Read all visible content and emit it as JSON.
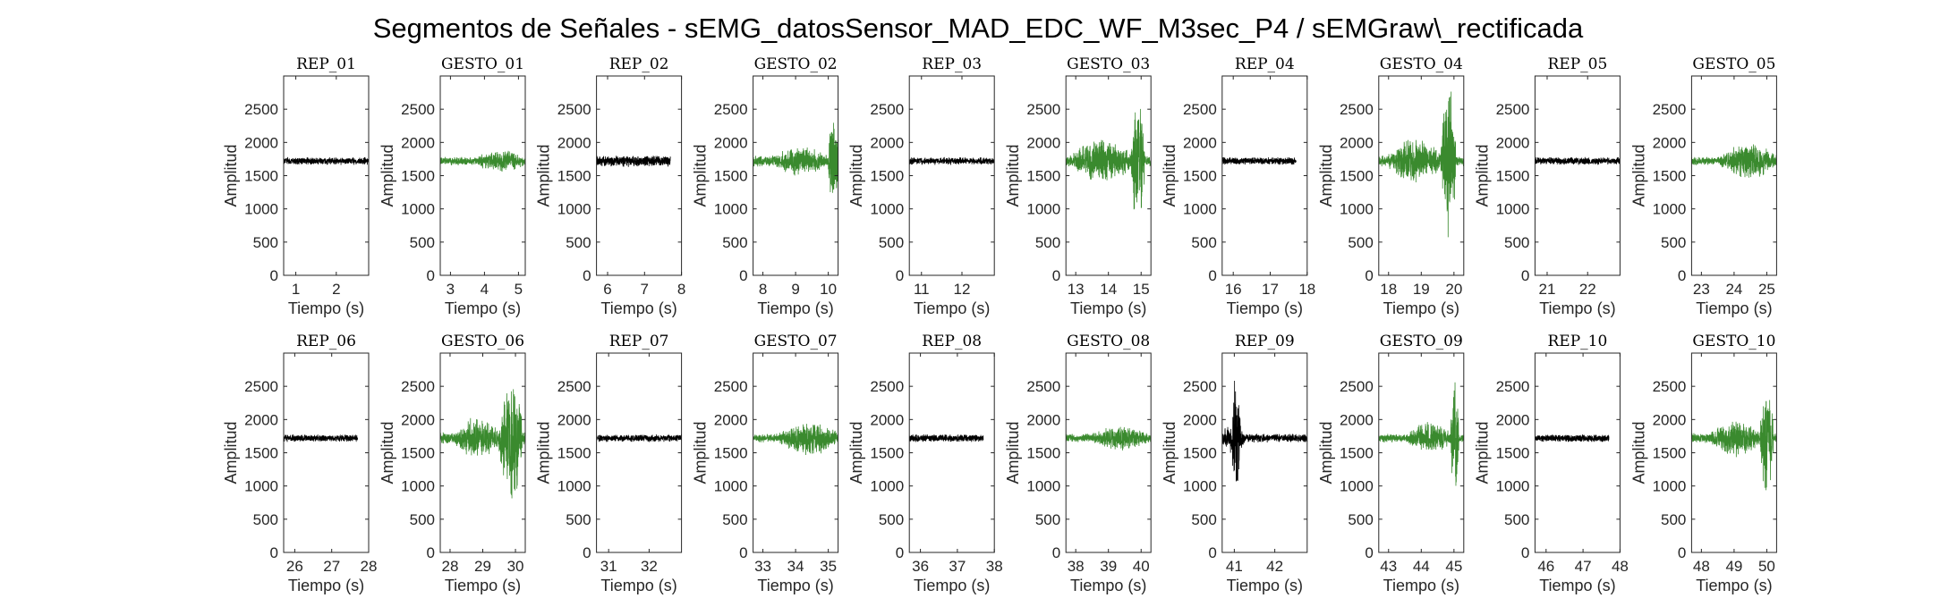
{
  "figure": {
    "title": "Segmentos de Señales - sEMG_datosSensor_MAD_EDC_WF_M3sec_P4 / sEMGraw\\_rectificada",
    "colors": {
      "rep": "#000000",
      "gesto": "#3A8A2E",
      "axis": "#262626"
    }
  },
  "chart_data": [
    {
      "type": "line",
      "title": "REP_01",
      "kind": "rep",
      "xlabel": "Tiempo (s)",
      "ylabel": "Amplitud",
      "xlim": [
        0.7,
        2.8
      ],
      "ylim": [
        0,
        3000
      ],
      "xticks": [
        1,
        2
      ],
      "yticks": [
        0,
        500,
        1000,
        1500,
        2000,
        2500
      ],
      "series": [
        {
          "x_start": 0.7,
          "x_end": 2.8,
          "baseline": 1720,
          "noise": 60,
          "bursts": []
        }
      ]
    },
    {
      "type": "line",
      "title": "GESTO_01",
      "kind": "gesto",
      "xlabel": "Tiempo (s)",
      "ylabel": "Amplitud",
      "xlim": [
        2.7,
        5.2
      ],
      "ylim": [
        0,
        3000
      ],
      "xticks": [
        3,
        4,
        5
      ],
      "yticks": [
        0,
        500,
        1000,
        1500,
        2000,
        2500
      ],
      "series": [
        {
          "x_start": 2.7,
          "x_end": 5.2,
          "baseline": 1720,
          "noise": 70,
          "bursts": [
            [
              3.7,
              5.2,
              180
            ]
          ]
        }
      ]
    },
    {
      "type": "line",
      "title": "REP_02",
      "kind": "rep",
      "xlabel": "Tiempo (s)",
      "ylabel": "Amplitud",
      "xlim": [
        5.7,
        8.0
      ],
      "ylim": [
        0,
        3000
      ],
      "xticks": [
        6,
        7,
        8
      ],
      "yticks": [
        0,
        500,
        1000,
        1500,
        2000,
        2500
      ],
      "series": [
        {
          "x_start": 5.7,
          "x_end": 7.7,
          "baseline": 1720,
          "noise": 90,
          "bursts": []
        }
      ]
    },
    {
      "type": "line",
      "title": "GESTO_02",
      "kind": "gesto",
      "xlabel": "Tiempo (s)",
      "ylabel": "Amplitud",
      "xlim": [
        7.7,
        10.3
      ],
      "ylim": [
        0,
        3000
      ],
      "xticks": [
        8,
        9,
        10
      ],
      "yticks": [
        0,
        500,
        1000,
        1500,
        2000,
        2500
      ],
      "series": [
        {
          "x_start": 7.7,
          "x_end": 10.3,
          "baseline": 1720,
          "noise": 90,
          "bursts": [
            [
              8.3,
              10.0,
              230
            ],
            [
              10.0,
              10.3,
              900
            ]
          ]
        }
      ]
    },
    {
      "type": "line",
      "title": "REP_03",
      "kind": "rep",
      "xlabel": "Tiempo (s)",
      "ylabel": "Amplitud",
      "xlim": [
        10.7,
        12.8
      ],
      "ylim": [
        0,
        3000
      ],
      "xticks": [
        11,
        12
      ],
      "yticks": [
        0,
        500,
        1000,
        1500,
        2000,
        2500
      ],
      "series": [
        {
          "x_start": 10.7,
          "x_end": 12.8,
          "baseline": 1720,
          "noise": 60,
          "bursts": []
        }
      ]
    },
    {
      "type": "line",
      "title": "GESTO_03",
      "kind": "gesto",
      "xlabel": "Tiempo (s)",
      "ylabel": "Amplitud",
      "xlim": [
        12.7,
        15.3
      ],
      "ylim": [
        0,
        3000
      ],
      "xticks": [
        13,
        14,
        15
      ],
      "yticks": [
        0,
        500,
        1000,
        1500,
        2000,
        2500
      ],
      "series": [
        {
          "x_start": 12.7,
          "x_end": 15.3,
          "baseline": 1720,
          "noise": 90,
          "bursts": [
            [
              12.9,
              14.7,
              350
            ],
            [
              14.7,
              15.1,
              1050
            ]
          ]
        }
      ]
    },
    {
      "type": "line",
      "title": "REP_04",
      "kind": "rep",
      "xlabel": "Tiempo (s)",
      "ylabel": "Amplitud",
      "xlim": [
        15.7,
        18.0
      ],
      "ylim": [
        0,
        3000
      ],
      "xticks": [
        16,
        17,
        18
      ],
      "yticks": [
        0,
        500,
        1000,
        1500,
        2000,
        2500
      ],
      "series": [
        {
          "x_start": 15.7,
          "x_end": 17.7,
          "baseline": 1720,
          "noise": 60,
          "bursts": []
        }
      ]
    },
    {
      "type": "line",
      "title": "GESTO_04",
      "kind": "gesto",
      "xlabel": "Tiempo (s)",
      "ylabel": "Amplitud",
      "xlim": [
        17.7,
        20.3
      ],
      "ylim": [
        0,
        3000
      ],
      "xticks": [
        18,
        19,
        20
      ],
      "yticks": [
        0,
        500,
        1000,
        1500,
        2000,
        2500
      ],
      "series": [
        {
          "x_start": 17.7,
          "x_end": 20.3,
          "baseline": 1720,
          "noise": 90,
          "bursts": [
            [
              18.0,
              19.6,
              350
            ],
            [
              19.6,
              20.05,
              1250
            ]
          ]
        }
      ]
    },
    {
      "type": "line",
      "title": "REP_05",
      "kind": "rep",
      "xlabel": "Tiempo (s)",
      "ylabel": "Amplitud",
      "xlim": [
        20.7,
        22.8
      ],
      "ylim": [
        0,
        3000
      ],
      "xticks": [
        21,
        22
      ],
      "yticks": [
        0,
        500,
        1000,
        1500,
        2000,
        2500
      ],
      "series": [
        {
          "x_start": 20.7,
          "x_end": 22.8,
          "baseline": 1720,
          "noise": 60,
          "bursts": []
        }
      ]
    },
    {
      "type": "line",
      "title": "GESTO_05",
      "kind": "gesto",
      "xlabel": "Tiempo (s)",
      "ylabel": "Amplitud",
      "xlim": [
        22.7,
        25.3
      ],
      "ylim": [
        0,
        3000
      ],
      "xticks": [
        23,
        24,
        25
      ],
      "yticks": [
        0,
        500,
        1000,
        1500,
        2000,
        2500
      ],
      "series": [
        {
          "x_start": 22.7,
          "x_end": 25.3,
          "baseline": 1720,
          "noise": 70,
          "bursts": [
            [
              23.6,
              25.3,
              280
            ]
          ]
        }
      ]
    },
    {
      "type": "line",
      "title": "REP_06",
      "kind": "rep",
      "xlabel": "Tiempo (s)",
      "ylabel": "Amplitud",
      "xlim": [
        25.7,
        28.0
      ],
      "ylim": [
        0,
        3000
      ],
      "xticks": [
        26,
        27,
        28
      ],
      "yticks": [
        0,
        500,
        1000,
        1500,
        2000,
        2500
      ],
      "series": [
        {
          "x_start": 25.7,
          "x_end": 27.7,
          "baseline": 1720,
          "noise": 60,
          "bursts": []
        }
      ]
    },
    {
      "type": "line",
      "title": "GESTO_06",
      "kind": "gesto",
      "xlabel": "Tiempo (s)",
      "ylabel": "Amplitud",
      "xlim": [
        27.7,
        30.3
      ],
      "ylim": [
        0,
        3000
      ],
      "xticks": [
        28,
        29,
        30
      ],
      "yticks": [
        0,
        500,
        1000,
        1500,
        2000,
        2500
      ],
      "series": [
        {
          "x_start": 27.7,
          "x_end": 30.3,
          "baseline": 1720,
          "noise": 100,
          "bursts": [
            [
              28.2,
              29.5,
              350
            ],
            [
              29.5,
              30.2,
              1100
            ]
          ]
        }
      ]
    },
    {
      "type": "line",
      "title": "REP_07",
      "kind": "rep",
      "xlabel": "Tiempo (s)",
      "ylabel": "Amplitud",
      "xlim": [
        30.7,
        32.8
      ],
      "ylim": [
        0,
        3000
      ],
      "xticks": [
        31,
        32
      ],
      "yticks": [
        0,
        500,
        1000,
        1500,
        2000,
        2500
      ],
      "series": [
        {
          "x_start": 30.7,
          "x_end": 32.8,
          "baseline": 1720,
          "noise": 60,
          "bursts": []
        }
      ]
    },
    {
      "type": "line",
      "title": "GESTO_07",
      "kind": "gesto",
      "xlabel": "Tiempo (s)",
      "ylabel": "Amplitud",
      "xlim": [
        32.7,
        35.3
      ],
      "ylim": [
        0,
        3000
      ],
      "xticks": [
        33,
        34,
        35
      ],
      "yticks": [
        0,
        500,
        1000,
        1500,
        2000,
        2500
      ],
      "series": [
        {
          "x_start": 32.7,
          "x_end": 35.3,
          "baseline": 1720,
          "noise": 70,
          "bursts": [
            [
              33.5,
              35.3,
              280
            ]
          ]
        }
      ]
    },
    {
      "type": "line",
      "title": "REP_08",
      "kind": "rep",
      "xlabel": "Tiempo (s)",
      "ylabel": "Amplitud",
      "xlim": [
        35.7,
        38.0
      ],
      "ylim": [
        0,
        3000
      ],
      "xticks": [
        36,
        37,
        38
      ],
      "yticks": [
        0,
        500,
        1000,
        1500,
        2000,
        2500
      ],
      "series": [
        {
          "x_start": 35.7,
          "x_end": 37.7,
          "baseline": 1720,
          "noise": 60,
          "bursts": []
        }
      ]
    },
    {
      "type": "line",
      "title": "GESTO_08",
      "kind": "gesto",
      "xlabel": "Tiempo (s)",
      "ylabel": "Amplitud",
      "xlim": [
        37.7,
        40.3
      ],
      "ylim": [
        0,
        3000
      ],
      "xticks": [
        38,
        39,
        40
      ],
      "yticks": [
        0,
        500,
        1000,
        1500,
        2000,
        2500
      ],
      "series": [
        {
          "x_start": 37.7,
          "x_end": 40.3,
          "baseline": 1720,
          "noise": 70,
          "bursts": [
            [
              38.5,
              40.3,
              200
            ]
          ]
        }
      ]
    },
    {
      "type": "line",
      "title": "REP_09",
      "kind": "rep",
      "xlabel": "Tiempo (s)",
      "ylabel": "Amplitud",
      "xlim": [
        40.7,
        42.8
      ],
      "ylim": [
        0,
        3000
      ],
      "xticks": [
        41,
        42
      ],
      "yticks": [
        0,
        500,
        1000,
        1500,
        2000,
        2500
      ],
      "series": [
        {
          "x_start": 40.7,
          "x_end": 42.8,
          "baseline": 1720,
          "noise": 70,
          "bursts": [
            [
              40.7,
              41.25,
              280
            ],
            [
              40.95,
              41.15,
              1050
            ]
          ]
        }
      ]
    },
    {
      "type": "line",
      "title": "GESTO_09",
      "kind": "gesto",
      "xlabel": "Tiempo (s)",
      "ylabel": "Amplitud",
      "xlim": [
        42.7,
        45.3
      ],
      "ylim": [
        0,
        3000
      ],
      "xticks": [
        43,
        44,
        45
      ],
      "yticks": [
        0,
        500,
        1000,
        1500,
        2000,
        2500
      ],
      "series": [
        {
          "x_start": 42.7,
          "x_end": 45.3,
          "baseline": 1720,
          "noise": 70,
          "bursts": [
            [
              43.6,
              44.9,
              250
            ],
            [
              44.9,
              45.15,
              1000
            ]
          ]
        }
      ]
    },
    {
      "type": "line",
      "title": "REP_10",
      "kind": "rep",
      "xlabel": "Tiempo (s)",
      "ylabel": "Amplitud",
      "xlim": [
        45.7,
        48.0
      ],
      "ylim": [
        0,
        3000
      ],
      "xticks": [
        46,
        47,
        48
      ],
      "yticks": [
        0,
        500,
        1000,
        1500,
        2000,
        2500
      ],
      "series": [
        {
          "x_start": 45.7,
          "x_end": 47.7,
          "baseline": 1720,
          "noise": 60,
          "bursts": []
        }
      ]
    },
    {
      "type": "line",
      "title": "GESTO_10",
      "kind": "gesto",
      "xlabel": "Tiempo (s)",
      "ylabel": "Amplitud",
      "xlim": [
        47.7,
        50.3
      ],
      "ylim": [
        0,
        3000
      ],
      "xticks": [
        48,
        49,
        50
      ],
      "yticks": [
        0,
        500,
        1000,
        1500,
        2000,
        2500
      ],
      "series": [
        {
          "x_start": 47.7,
          "x_end": 50.3,
          "baseline": 1720,
          "noise": 80,
          "bursts": [
            [
              48.3,
              49.8,
              300
            ],
            [
              49.8,
              50.2,
              900
            ]
          ]
        }
      ]
    }
  ]
}
